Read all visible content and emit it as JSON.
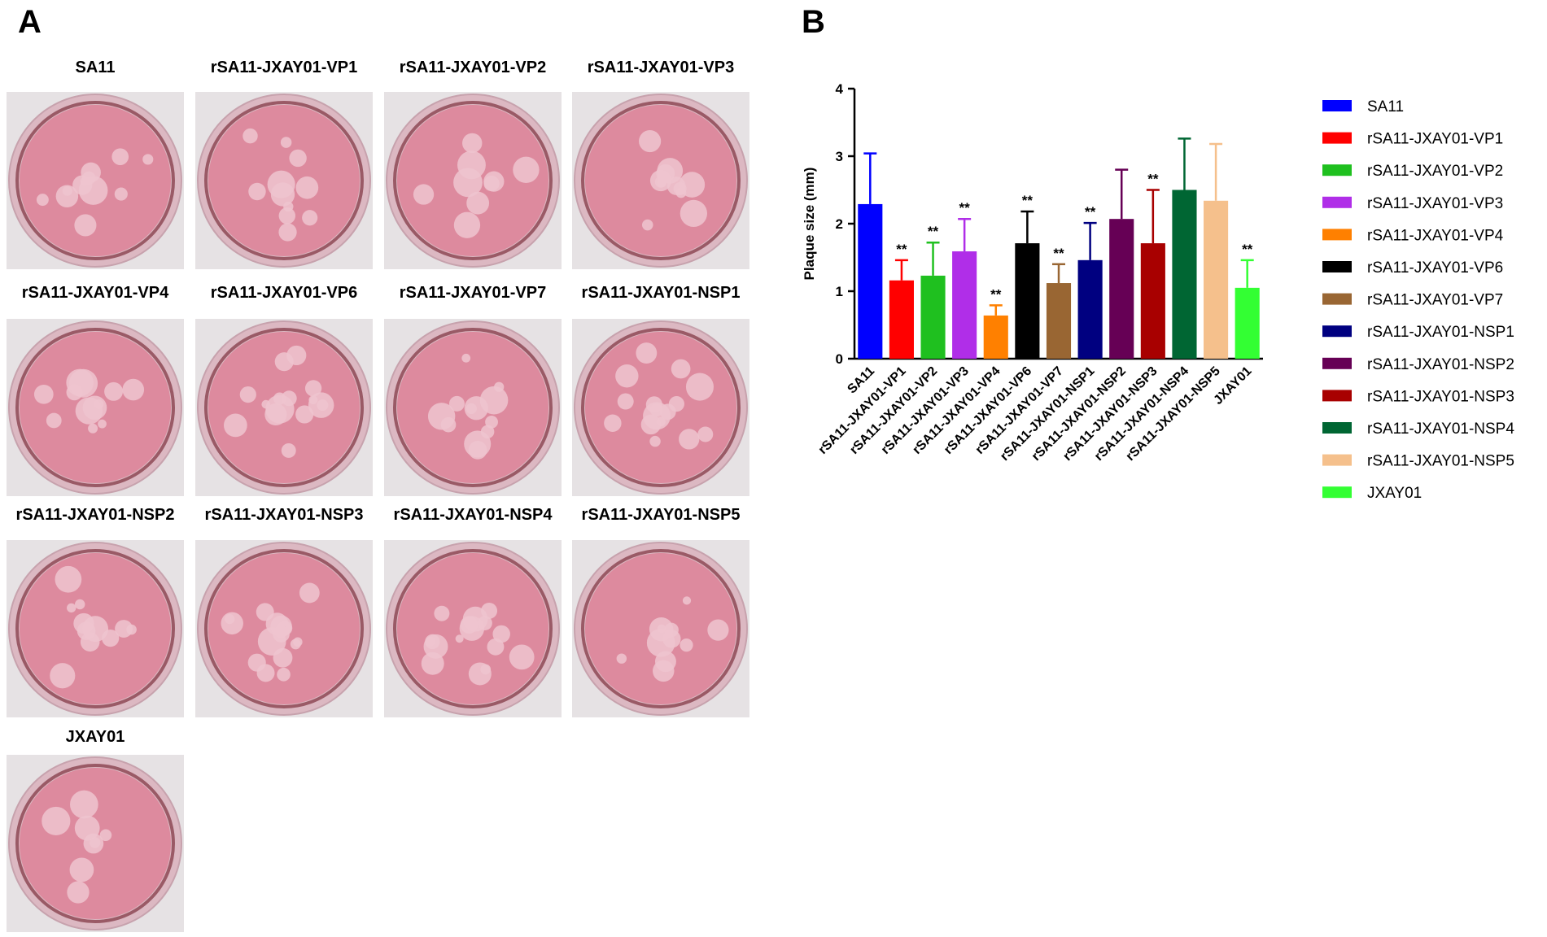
{
  "panel_a": {
    "label": "A",
    "wells": [
      "SA11",
      "rSA11-JXAY01-VP1",
      "rSA11-JXAY01-VP2",
      "rSA11-JXAY01-VP3",
      "rSA11-JXAY01-VP4",
      "rSA11-JXAY01-VP6",
      "rSA11-JXAY01-VP7",
      "rSA11-JXAY01-NSP1",
      "rSA11-JXAY01-NSP2",
      "rSA11-JXAY01-NSP3",
      "rSA11-JXAY01-NSP4",
      "rSA11-JXAY01-NSP5",
      "JXAY01"
    ]
  },
  "chart_data": {
    "type": "bar",
    "panel_label": "B",
    "ylabel": "Plaque size (mm)",
    "categories": [
      "SA11",
      "rSA11-JXAY01-VP1",
      "rSA11-JXAY01-VP2",
      "rSA11-JXAY01-VP3",
      "rSA11-JXAY01-VP4",
      "rSA11-JXAY01-VP6",
      "rSA11-JXAY01-VP7",
      "rSA11-JXAY01-NSP1",
      "rSA11-JXAY01-NSP2",
      "rSA11-JXAY01-NSP3",
      "rSA11-JXAY01-NSP4",
      "rSA11-JXAY01-NSP5",
      "JXAY01"
    ],
    "values": [
      2.29,
      1.16,
      1.23,
      1.59,
      0.64,
      1.71,
      1.12,
      1.46,
      2.07,
      1.71,
      2.5,
      2.34,
      1.05
    ],
    "errors": [
      0.75,
      0.3,
      0.49,
      0.48,
      0.15,
      0.47,
      0.28,
      0.55,
      0.73,
      0.79,
      0.76,
      0.84,
      0.41
    ],
    "annotations": [
      null,
      "**",
      "**",
      "**",
      "**",
      "**",
      "**",
      "**",
      null,
      "**",
      null,
      null,
      "**"
    ],
    "colors": [
      "#0000ff",
      "#ff0000",
      "#1fc01f",
      "#b02ee8",
      "#ff8000",
      "#000000",
      "#996633",
      "#000080",
      "#660055",
      "#a80000",
      "#006633",
      "#f5c08c",
      "#33ff33"
    ],
    "ylim": [
      0,
      4
    ],
    "yticks": [
      0,
      1,
      2,
      3,
      4
    ],
    "legend": "right"
  }
}
